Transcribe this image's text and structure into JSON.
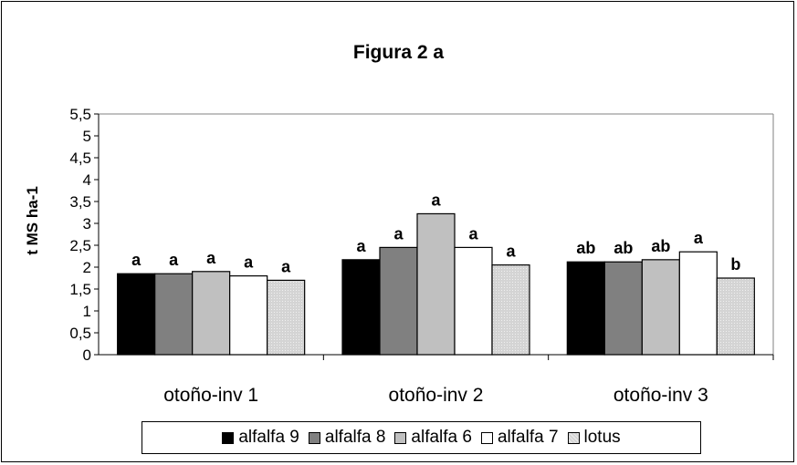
{
  "chart_data": {
    "type": "bar",
    "title": "Figura 2 a",
    "ylabel": "t MS ha-1",
    "xlabel": "",
    "ylim": [
      0,
      5.5
    ],
    "yticks": [
      "0",
      "0,5",
      "1",
      "1,5",
      "2",
      "2,5",
      "3",
      "3,5",
      "4",
      "4,5",
      "5",
      "5,5"
    ],
    "categories": [
      "otoño-inv 1",
      "otoño-inv 2",
      "otoño-inv 3"
    ],
    "series": [
      {
        "name": "alfalfa 9",
        "color": "#000000",
        "values": [
          1.85,
          2.17,
          2.12
        ],
        "labels": [
          "a",
          "a",
          "ab"
        ]
      },
      {
        "name": "alfalfa 8",
        "color": "#808080",
        "values": [
          1.85,
          2.45,
          2.12
        ],
        "labels": [
          "a",
          "a",
          "ab"
        ]
      },
      {
        "name": "alfalfa 6",
        "color": "#c0c0c0",
        "values": [
          1.9,
          3.22,
          2.17
        ],
        "labels": [
          "a",
          "a",
          "ab"
        ]
      },
      {
        "name": "alfalfa 7",
        "color": "#ffffff",
        "values": [
          1.8,
          2.45,
          2.35
        ],
        "labels": [
          "a",
          "a",
          "a"
        ]
      },
      {
        "name": "lotus",
        "color": "#dcdcdc",
        "values": [
          1.7,
          2.05,
          1.75
        ],
        "labels": [
          "a",
          "a",
          "b"
        ]
      }
    ],
    "grid": false,
    "legend_position": "bottom"
  }
}
